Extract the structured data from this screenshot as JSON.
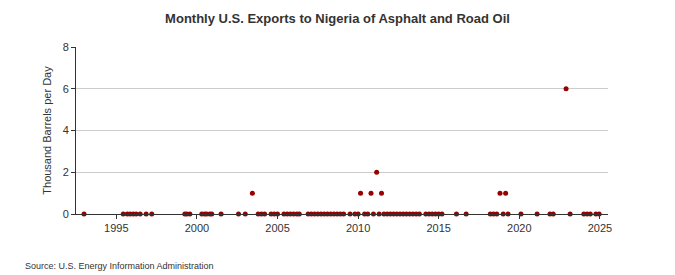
{
  "chart_data": {
    "type": "scatter",
    "title": "Monthly U.S. Exports to Nigeria of Asphalt and Road Oil",
    "y_label": "Thousand Barrels per Day",
    "source": "Source: U.S. Energy Information Administration",
    "x": [
      1993.0,
      1995.43,
      1995.68,
      1995.86,
      1996.05,
      1996.23,
      1996.48,
      1996.85,
      1997.2,
      1999.25,
      1999.37,
      1999.56,
      2000.3,
      2000.48,
      2000.6,
      2000.8,
      2000.92,
      2001.5,
      2002.58,
      2003.0,
      2003.44,
      2003.8,
      2004.0,
      2004.2,
      2004.6,
      2004.8,
      2005.0,
      2005.4,
      2005.6,
      2005.8,
      2006.0,
      2006.2,
      2006.35,
      2006.9,
      2007.1,
      2007.3,
      2007.5,
      2007.7,
      2007.9,
      2008.1,
      2008.3,
      2008.5,
      2008.7,
      2008.9,
      2009.1,
      2009.5,
      2009.8,
      2010.0,
      2010.15,
      2010.4,
      2010.6,
      2010.8,
      2010.95,
      2011.15,
      2011.3,
      2011.45,
      2011.6,
      2011.8,
      2012.0,
      2012.2,
      2012.4,
      2012.6,
      2012.8,
      2013.0,
      2013.2,
      2013.4,
      2013.6,
      2013.8,
      2014.2,
      2014.4,
      2014.6,
      2014.8,
      2015.0,
      2015.2,
      2016.1,
      2016.7,
      2018.2,
      2018.4,
      2018.6,
      2018.8,
      2019.0,
      2019.15,
      2019.3,
      2020.1,
      2021.1,
      2021.9,
      2022.1,
      2022.9,
      2023.15,
      2024.0,
      2024.2,
      2024.4,
      2024.75,
      2024.95
    ],
    "values": [
      0,
      0,
      0,
      0,
      0,
      0,
      0,
      0,
      0,
      0,
      0,
      0,
      0,
      0,
      0,
      0,
      0,
      0,
      0,
      0,
      1,
      0,
      0,
      0,
      0,
      0,
      0,
      0,
      0,
      0,
      0,
      0,
      0,
      0,
      0,
      0,
      0,
      0,
      0,
      0,
      0,
      0,
      0,
      0,
      0,
      0,
      0,
      0,
      1,
      0,
      0,
      1,
      0,
      2,
      0,
      1,
      0,
      0,
      0,
      0,
      0,
      0,
      0,
      0,
      0,
      0,
      0,
      0,
      0,
      0,
      0,
      0,
      0,
      0,
      0,
      0,
      0,
      0,
      0,
      1,
      0,
      1,
      0,
      0,
      0,
      0,
      0,
      6,
      0,
      0,
      0,
      0,
      0,
      0
    ],
    "color": "#990000",
    "marker": "circle",
    "xlim": [
      1992.5,
      2025.5
    ],
    "xticks": [
      1995,
      2000,
      2005,
      2010,
      2015,
      2020,
      2025
    ],
    "ylim": [
      0,
      8
    ],
    "yticks": [
      0,
      2,
      4,
      6,
      8
    ],
    "grid": true
  }
}
